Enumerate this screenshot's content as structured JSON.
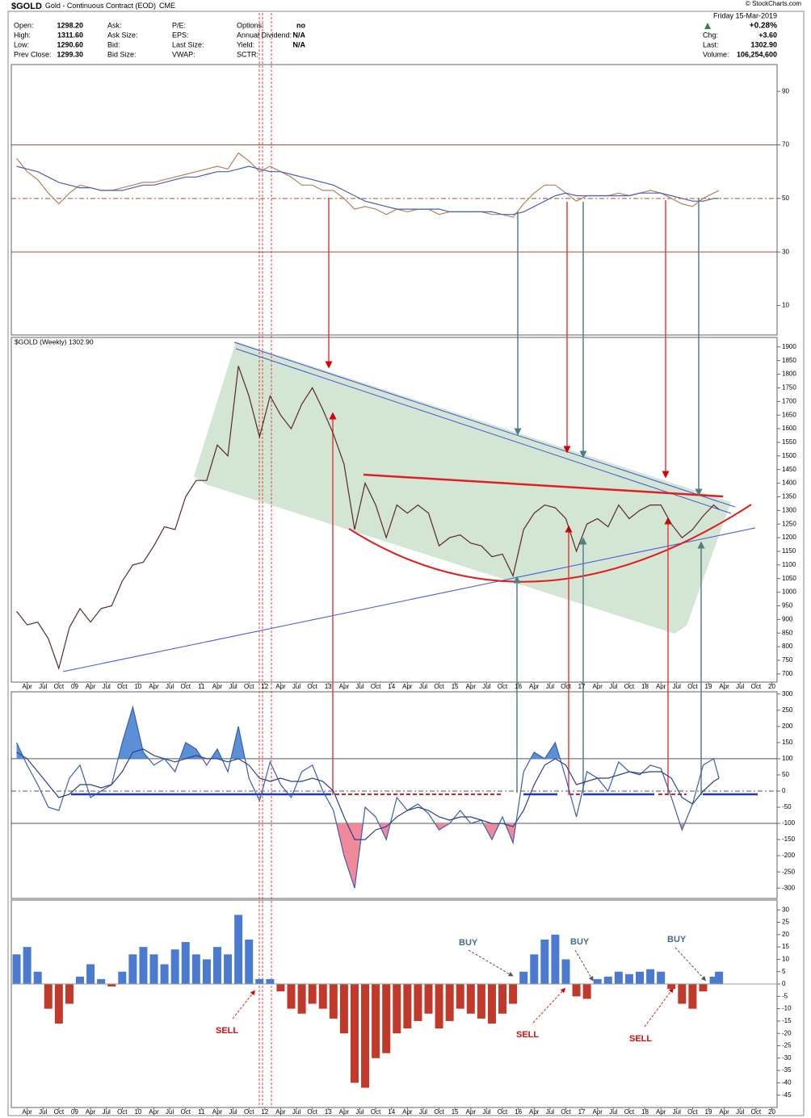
{
  "header": {
    "symbol": "$GOLD",
    "name": "Gold - Continuous Contract (EOD)",
    "exchange": "CME",
    "copyright": "© StockCharts.com",
    "date": "Friday 15-Mar-2019",
    "change_pct": "+0.28%",
    "columns": [
      [
        {
          "label": "Open:",
          "value": "1298.20"
        },
        {
          "label": "High:",
          "value": "1311.60"
        },
        {
          "label": "Low:",
          "value": "1290.60"
        },
        {
          "label": "Prev Close:",
          "value": "1299.30"
        }
      ],
      [
        {
          "label": "Ask:"
        },
        {
          "label": "Ask Size:"
        },
        {
          "label": "Bid:"
        },
        {
          "label": "Bid Size:"
        }
      ],
      [
        {
          "label": "P/E:"
        },
        {
          "label": "EPS:"
        },
        {
          "label": "Last Size:"
        },
        {
          "label": "VWAP:"
        }
      ],
      [
        {
          "label": "Options:",
          "value": "no"
        },
        {
          "label": "Annual Dividend:",
          "value": "N/A"
        },
        {
          "label": "Yield:",
          "value": "N/A"
        },
        {
          "label": "SCTR:"
        }
      ]
    ],
    "stats": [
      {
        "label": "Chg:",
        "value": "+3.60"
      },
      {
        "label": "Last:",
        "value": "1302.90"
      },
      {
        "label": "Volume:",
        "value": "106,254,600"
      }
    ]
  },
  "annotations": [
    "BUY",
    "BUY",
    "BUY",
    "SELL",
    "SELL",
    "SELL"
  ],
  "chart_data": {
    "xlim": [
      "2008-01",
      "2020-02"
    ],
    "x": [
      "2008-02",
      "2008-04",
      "2008-06",
      "2008-08",
      "2008-10",
      "2008-12",
      "2009-02",
      "2009-04",
      "2009-06",
      "2009-08",
      "2009-10",
      "2009-12",
      "2010-02",
      "2010-04",
      "2010-06",
      "2010-08",
      "2010-10",
      "2010-12",
      "2011-02",
      "2011-04",
      "2011-06",
      "2011-08",
      "2011-10",
      "2011-12",
      "2012-02",
      "2012-04",
      "2012-06",
      "2012-08",
      "2012-10",
      "2012-12",
      "2013-02",
      "2013-04",
      "2013-06",
      "2013-08",
      "2013-10",
      "2013-12",
      "2014-02",
      "2014-04",
      "2014-06",
      "2014-08",
      "2014-10",
      "2014-12",
      "2015-02",
      "2015-04",
      "2015-06",
      "2015-08",
      "2015-10",
      "2015-12",
      "2016-02",
      "2016-04",
      "2016-06",
      "2016-08",
      "2016-10",
      "2016-12",
      "2017-02",
      "2017-04",
      "2017-06",
      "2017-08",
      "2017-10",
      "2017-12",
      "2018-02",
      "2018-04",
      "2018-06",
      "2018-08",
      "2018-10",
      "2018-12",
      "2019-02",
      "2019-03"
    ],
    "xticks": [
      {
        "value": "2008-04",
        "label": "Apr"
      },
      {
        "value": "2008-07",
        "label": "Jul"
      },
      {
        "value": "2008-10",
        "label": "Oct"
      },
      {
        "value": "2009-01",
        "label": "09"
      },
      {
        "value": "2009-04",
        "label": "Apr"
      },
      {
        "value": "2009-07",
        "label": "Jul"
      },
      {
        "value": "2009-10",
        "label": "Oct"
      },
      {
        "value": "2010-01",
        "label": "10"
      },
      {
        "value": "2010-04",
        "label": "Apr"
      },
      {
        "value": "2010-07",
        "label": "Jul"
      },
      {
        "value": "2010-10",
        "label": "Oct"
      },
      {
        "value": "2011-01",
        "label": "11"
      },
      {
        "value": "2011-04",
        "label": "Apr"
      },
      {
        "value": "2011-07",
        "label": "Jul"
      },
      {
        "value": "2011-10",
        "label": "Oct"
      },
      {
        "value": "2012-01",
        "label": "12"
      },
      {
        "value": "2012-04",
        "label": "Apr"
      },
      {
        "value": "2012-07",
        "label": "Jul"
      },
      {
        "value": "2012-10",
        "label": "Oct"
      },
      {
        "value": "2013-01",
        "label": "13"
      },
      {
        "value": "2013-04",
        "label": "Apr"
      },
      {
        "value": "2013-07",
        "label": "Jul"
      },
      {
        "value": "2013-10",
        "label": "Oct"
      },
      {
        "value": "2014-01",
        "label": "14"
      },
      {
        "value": "2014-04",
        "label": "Apr"
      },
      {
        "value": "2014-07",
        "label": "Jul"
      },
      {
        "value": "2014-10",
        "label": "Oct"
      },
      {
        "value": "2015-01",
        "label": "15"
      },
      {
        "value": "2015-04",
        "label": "Apr"
      },
      {
        "value": "2015-07",
        "label": "Jul"
      },
      {
        "value": "2015-10",
        "label": "Oct"
      },
      {
        "value": "2016-01",
        "label": "16"
      },
      {
        "value": "2016-04",
        "label": "Apr"
      },
      {
        "value": "2016-07",
        "label": "Jul"
      },
      {
        "value": "2016-10",
        "label": "Oct"
      },
      {
        "value": "2017-01",
        "label": "17"
      },
      {
        "value": "2017-04",
        "label": "Apr"
      },
      {
        "value": "2017-07",
        "label": "Jul"
      },
      {
        "value": "2017-10",
        "label": "Oct"
      },
      {
        "value": "2018-01",
        "label": "18"
      },
      {
        "value": "2018-04",
        "label": "Apr"
      },
      {
        "value": "2018-07",
        "label": "Jul"
      },
      {
        "value": "2018-10",
        "label": "Oct"
      },
      {
        "value": "2019-01",
        "label": "19"
      },
      {
        "value": "2019-04",
        "label": "Apr"
      },
      {
        "value": "2019-07",
        "label": "Jul"
      },
      {
        "value": "2019-10",
        "label": "Oct"
      },
      {
        "value": "2020-01",
        "label": "20"
      }
    ],
    "panels": [
      {
        "type": "line",
        "ylim": [
          -1,
          100
        ],
        "yticks": [
          10,
          30,
          50,
          70,
          90
        ],
        "reference_lines": [
          {
            "value": 70,
            "color": "#a0522d",
            "dashed": false
          },
          {
            "value": 50,
            "color": "#a0522d",
            "dashed": true
          },
          {
            "value": 30,
            "color": "#a0522d",
            "dashed": false
          }
        ],
        "series": [
          {
            "color": "#b5835a",
            "values": [
              65,
              60,
              57,
              52,
              48,
              52,
              55,
              54,
              53,
              53,
              54,
              55,
              56,
              56,
              57,
              58,
              59,
              60,
              61,
              62,
              61,
              67,
              64,
              60,
              62,
              60,
              58,
              55,
              55,
              53,
              53,
              50,
              46,
              47,
              46,
              44,
              46,
              45,
              46,
              46,
              44,
              45,
              45,
              45,
              45,
              44,
              44,
              43,
              48,
              52,
              55,
              55,
              52,
              49,
              51,
              51,
              51,
              52,
              51,
              52,
              53,
              52,
              50,
              48,
              47,
              50,
              52,
              53
            ]
          },
          {
            "color": "#4a5fb0",
            "values": [
              62,
              61,
              60,
              58,
              56,
              55,
              54,
              54,
              53,
              53,
              53,
              54,
              55,
              55,
              56,
              57,
              58,
              58,
              59,
              60,
              60,
              61,
              62,
              61,
              60,
              60,
              59,
              58,
              57,
              56,
              55,
              53,
              51,
              49,
              48,
              47,
              46,
              46,
              46,
              46,
              46,
              45,
              45,
              45,
              45,
              45,
              44,
              44,
              45,
              47,
              49,
              51,
              52,
              51,
              51,
              51,
              51,
              51,
              51,
              52,
              52,
              52,
              51,
              50,
              49,
              49,
              50,
              50
            ]
          }
        ]
      },
      {
        "type": "line",
        "title": "$GOLD (Weekly) 1302.90",
        "ylim": [
          670,
          1935
        ],
        "yticks": [
          700,
          750,
          800,
          850,
          900,
          950,
          1000,
          1050,
          1100,
          1150,
          1200,
          1250,
          1300,
          1350,
          1400,
          1450,
          1500,
          1550,
          1600,
          1650,
          1700,
          1750,
          1800,
          1850,
          1900
        ],
        "series": [
          {
            "color": "#5a2a2a",
            "values": [
              930,
              880,
              890,
              830,
              720,
              870,
              940,
              890,
              940,
              950,
              1040,
              1100,
              1110,
              1170,
              1240,
              1230,
              1350,
              1410,
              1410,
              1540,
              1500,
              1830,
              1720,
              1570,
              1720,
              1650,
              1600,
              1690,
              1750,
              1670,
              1580,
              1470,
              1230,
              1400,
              1320,
              1200,
              1320,
              1290,
              1320,
              1290,
              1170,
              1200,
              1210,
              1180,
              1170,
              1130,
              1140,
              1060,
              1230,
              1290,
              1320,
              1310,
              1270,
              1150,
              1250,
              1270,
              1240,
              1320,
              1270,
              1300,
              1320,
              1320,
              1250,
              1200,
              1230,
              1280,
              1320,
              1303
            ]
          }
        ]
      },
      {
        "type": "line",
        "ylim": [
          -332,
          307
        ],
        "yticks": [
          300,
          250,
          200,
          150,
          100,
          50,
          0,
          -50,
          -100,
          -150,
          -200,
          -250,
          -300
        ],
        "reference_lines": [
          {
            "value": 100,
            "color": "#555555",
            "dashed": false
          },
          {
            "value": 0,
            "color": "#555555",
            "dashed": true
          },
          {
            "value": -100,
            "color": "#555555",
            "dashed": false
          }
        ],
        "fills": [
          {
            "value": 100,
            "side": "above",
            "color": "#5b8fd6"
          },
          {
            "value": -100,
            "side": "below",
            "color": "#f08a9a"
          }
        ],
        "series": [
          {
            "color": "#3a5fb0",
            "values": [
              150,
              80,
              20,
              -50,
              -60,
              40,
              80,
              -20,
              0,
              20,
              150,
              260,
              120,
              80,
              100,
              60,
              150,
              130,
              80,
              130,
              60,
              200,
              40,
              -30,
              90,
              20,
              -20,
              60,
              80,
              0,
              -60,
              -200,
              -300,
              -50,
              -80,
              -150,
              -20,
              -60,
              -40,
              -70,
              -120,
              -100,
              -60,
              -100,
              -90,
              -150,
              -80,
              -160,
              60,
              120,
              100,
              150,
              40,
              -80,
              60,
              40,
              0,
              90,
              60,
              50,
              80,
              70,
              -20,
              -120,
              -40,
              80,
              100,
              40
            ]
          },
          {
            "color": "#2a3f8f",
            "values": [
              120,
              100,
              60,
              20,
              -20,
              -10,
              20,
              20,
              10,
              20,
              60,
              120,
              130,
              110,
              100,
              90,
              100,
              110,
              100,
              100,
              90,
              100,
              80,
              40,
              30,
              40,
              30,
              30,
              40,
              30,
              0,
              -80,
              -150,
              -150,
              -120,
              -110,
              -80,
              -60,
              -50,
              -60,
              -80,
              -90,
              -80,
              -80,
              -90,
              -100,
              -100,
              -110,
              -60,
              20,
              80,
              100,
              80,
              20,
              30,
              40,
              40,
              50,
              60,
              55,
              60,
              60,
              40,
              -20,
              -40,
              0,
              30,
              40
            ]
          }
        ]
      },
      {
        "type": "histogram",
        "ylim": [
          -50,
          34
        ],
        "yticks": [
          30,
          25,
          20,
          15,
          10,
          5,
          0,
          -5,
          -10,
          -15,
          -20,
          -25,
          -30,
          -35,
          -40,
          -45
        ],
        "positive_color": "#4a7bd0",
        "negative_color": "#c0392b",
        "values": [
          12,
          15,
          5,
          -10,
          -16,
          -8,
          3,
          8,
          2,
          -1,
          5,
          12,
          15,
          12,
          8,
          14,
          17,
          12,
          10,
          15,
          12,
          28,
          18,
          2,
          2,
          -3,
          -10,
          -12,
          -8,
          -10,
          -14,
          -20,
          -40,
          -42,
          -30,
          -28,
          -20,
          -18,
          -15,
          -12,
          -18,
          -15,
          -10,
          -12,
          -14,
          -16,
          -12,
          -8,
          5,
          12,
          18,
          20,
          10,
          -5,
          -6,
          2,
          3,
          5,
          4,
          5,
          6,
          5,
          -2,
          -8,
          -10,
          -3,
          3,
          5
        ]
      }
    ]
  }
}
